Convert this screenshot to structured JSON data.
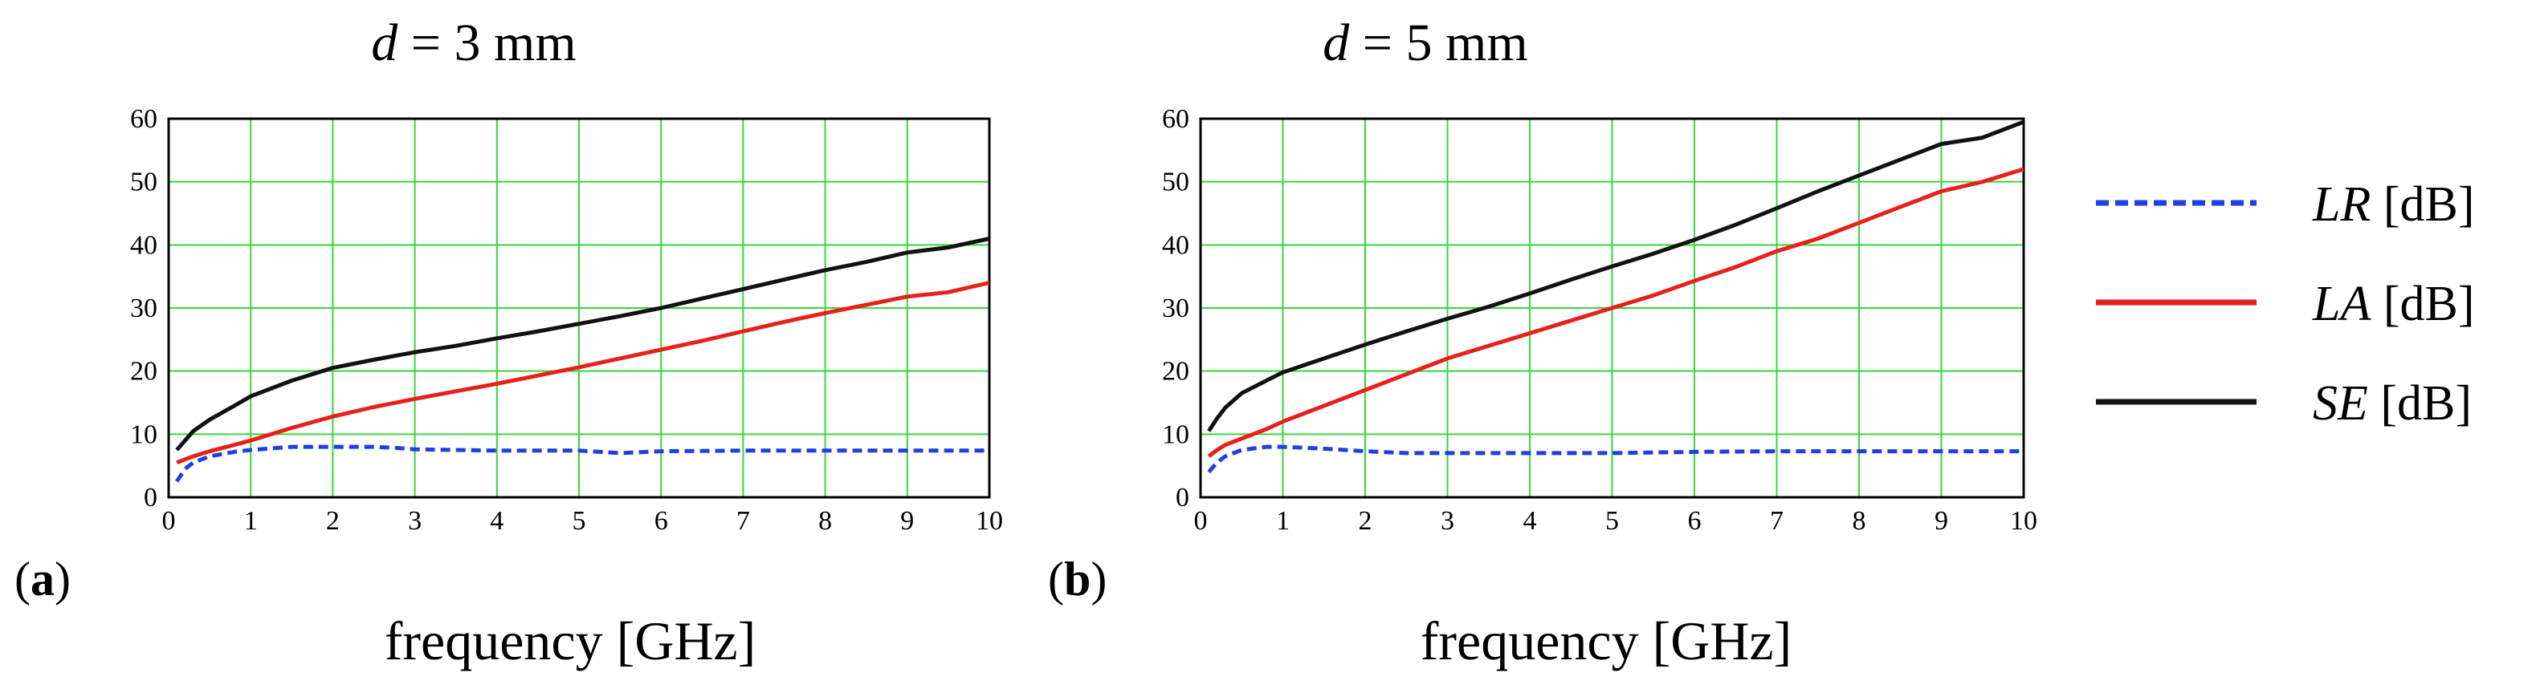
{
  "chart_data": [
    {
      "type": "line",
      "panel_label": "(a)",
      "title": "d = 3 mm",
      "title_var": "d",
      "title_rest": " = 3 mm",
      "xlabel": "frequency [GHz]",
      "ylabel": "",
      "xlim": [
        0,
        10
      ],
      "ylim": [
        0,
        60
      ],
      "xticks": [
        0,
        1,
        2,
        3,
        4,
        5,
        6,
        7,
        8,
        9,
        10
      ],
      "yticks": [
        0,
        10,
        20,
        30,
        40,
        50,
        60
      ],
      "grid": true,
      "series": [
        {
          "name": "LR [dB]",
          "color": "#1f3fe0",
          "style": "dashed",
          "x": [
            0.1,
            0.2,
            0.3,
            0.5,
            0.8,
            1.0,
            1.5,
            2.0,
            2.5,
            2.8,
            3.0,
            3.5,
            4.0,
            5.0,
            5.5,
            6.0,
            7.0,
            8.0,
            9.0,
            10.0
          ],
          "y": [
            2.5,
            4.5,
            5.5,
            6.5,
            7.2,
            7.5,
            8.0,
            8.0,
            8.0,
            7.8,
            7.6,
            7.5,
            7.4,
            7.4,
            7.0,
            7.3,
            7.4,
            7.4,
            7.4,
            7.4
          ]
        },
        {
          "name": "LA [dB]",
          "color": "#e8201a",
          "style": "solid",
          "x": [
            0.1,
            0.2,
            0.3,
            0.5,
            0.8,
            1.0,
            1.5,
            2.0,
            2.5,
            3.0,
            3.5,
            4.0,
            4.5,
            5.0,
            5.5,
            6.0,
            6.5,
            7.0,
            7.5,
            8.0,
            8.5,
            9.0,
            9.5,
            10.0
          ],
          "y": [
            5.5,
            6.0,
            6.5,
            7.3,
            8.3,
            9.0,
            11.0,
            12.8,
            14.3,
            15.6,
            16.8,
            18.0,
            19.3,
            20.6,
            22.0,
            23.4,
            24.8,
            26.3,
            27.8,
            29.2,
            30.5,
            31.8,
            32.5,
            34.0
          ]
        },
        {
          "name": "SE [dB]",
          "color": "#111111",
          "style": "solid",
          "x": [
            0.1,
            0.2,
            0.3,
            0.5,
            0.8,
            1.0,
            1.5,
            2.0,
            2.5,
            3.0,
            3.5,
            4.0,
            4.5,
            5.0,
            5.5,
            6.0,
            6.5,
            7.0,
            7.5,
            8.0,
            8.5,
            9.0,
            9.5,
            10.0
          ],
          "y": [
            7.5,
            9.0,
            10.5,
            12.3,
            14.5,
            16.0,
            18.5,
            20.5,
            21.8,
            23.0,
            24.0,
            25.2,
            26.3,
            27.5,
            28.7,
            30.0,
            31.5,
            33.0,
            34.5,
            36.0,
            37.3,
            38.8,
            39.6,
            41.0
          ]
        }
      ]
    },
    {
      "type": "line",
      "panel_label": "(b)",
      "title": "d = 5 mm",
      "title_var": "d",
      "title_rest": " = 5 mm",
      "xlabel": "frequency [GHz]",
      "ylabel": "",
      "xlim": [
        0,
        10
      ],
      "ylim": [
        0,
        60
      ],
      "xticks": [
        0,
        1,
        2,
        3,
        4,
        5,
        6,
        7,
        8,
        9,
        10
      ],
      "yticks": [
        0,
        10,
        20,
        30,
        40,
        50,
        60
      ],
      "grid": true,
      "series": [
        {
          "name": "LR [dB]",
          "color": "#1f3fe0",
          "style": "dashed",
          "x": [
            0.1,
            0.2,
            0.3,
            0.5,
            0.8,
            1.0,
            1.5,
            2.0,
            2.5,
            3.0,
            4.0,
            5.0,
            6.0,
            7.0,
            8.0,
            9.0,
            10.0
          ],
          "y": [
            4.0,
            5.5,
            6.5,
            7.5,
            8.0,
            8.0,
            7.7,
            7.3,
            7.0,
            7.0,
            7.0,
            7.0,
            7.2,
            7.3,
            7.3,
            7.3,
            7.3
          ]
        },
        {
          "name": "LA [dB]",
          "color": "#e8201a",
          "style": "solid",
          "x": [
            0.1,
            0.2,
            0.3,
            0.5,
            0.8,
            1.0,
            1.5,
            2.0,
            2.5,
            3.0,
            3.5,
            4.0,
            4.5,
            5.0,
            5.5,
            6.0,
            6.5,
            7.0,
            7.5,
            8.0,
            8.5,
            9.0,
            9.5,
            10.0
          ],
          "y": [
            6.5,
            7.5,
            8.3,
            9.3,
            10.8,
            12.0,
            14.5,
            17.0,
            19.5,
            22.0,
            24.0,
            26.0,
            28.0,
            30.0,
            32.0,
            34.3,
            36.5,
            39.0,
            41.0,
            43.5,
            46.0,
            48.5,
            50.0,
            52.0
          ]
        },
        {
          "name": "SE [dB]",
          "color": "#111111",
          "style": "solid",
          "x": [
            0.1,
            0.2,
            0.3,
            0.5,
            0.8,
            1.0,
            1.5,
            2.0,
            2.5,
            3.0,
            3.5,
            4.0,
            4.5,
            5.0,
            5.5,
            6.0,
            6.5,
            7.0,
            7.5,
            8.0,
            8.5,
            9.0,
            9.5,
            10.0
          ],
          "y": [
            10.5,
            12.5,
            14.2,
            16.5,
            18.5,
            19.8,
            22.0,
            24.2,
            26.3,
            28.3,
            30.2,
            32.3,
            34.5,
            36.6,
            38.6,
            40.8,
            43.2,
            45.8,
            48.5,
            51.0,
            53.5,
            56.0,
            57.0,
            59.5
          ]
        }
      ]
    }
  ],
  "legend": [
    {
      "var": "LR",
      "unit": " [dB]",
      "color": "#1f3fe0",
      "style": "dashed"
    },
    {
      "var": "LA",
      "unit": " [dB]",
      "color": "#e8201a",
      "style": "solid"
    },
    {
      "var": "SE",
      "unit": " [dB]",
      "color": "#111111",
      "style": "solid"
    }
  ],
  "grid_color": "#39d639"
}
